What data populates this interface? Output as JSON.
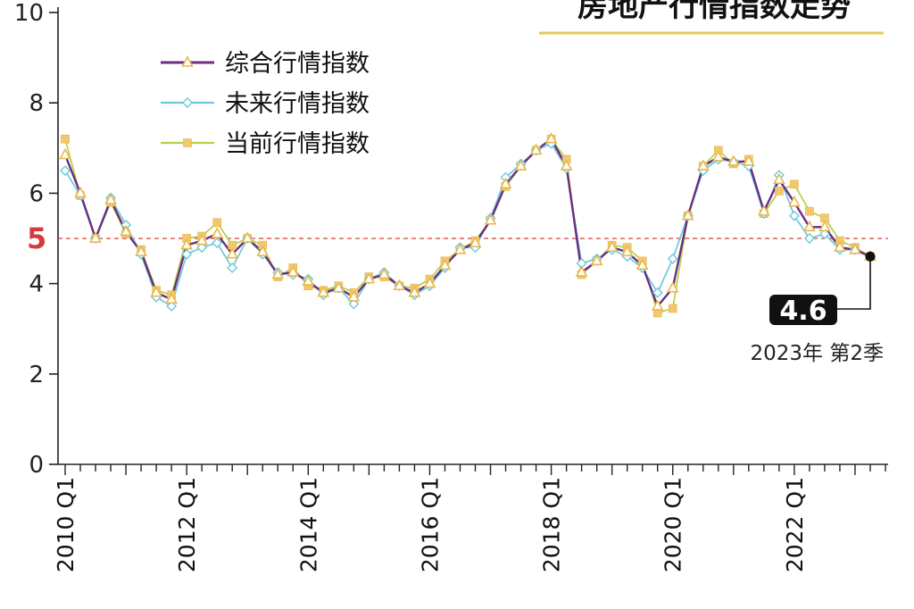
{
  "chart_data": {
    "type": "line",
    "title": "房地产行情指数走势",
    "ylim": [
      0,
      10
    ],
    "yticks": [
      0,
      2,
      4,
      6,
      8,
      10
    ],
    "reference_line": {
      "value": 5,
      "label": "5",
      "color": "#d63a3a"
    },
    "x_tick_labels": [
      "2010 Q1",
      "2012 Q1",
      "2014 Q1",
      "2016 Q1",
      "2018 Q1",
      "2020 Q1",
      "2022 Q1"
    ],
    "x_start_quarter": "2010 Q1",
    "x_end_quarter": "2023 Q2",
    "x": [
      "2010 Q1",
      "2010 Q2",
      "2010 Q3",
      "2010 Q4",
      "2011 Q1",
      "2011 Q2",
      "2011 Q3",
      "2011 Q4",
      "2012 Q1",
      "2012 Q2",
      "2012 Q3",
      "2012 Q4",
      "2013 Q1",
      "2013 Q2",
      "2013 Q3",
      "2013 Q4",
      "2014 Q1",
      "2014 Q2",
      "2014 Q3",
      "2014 Q4",
      "2015 Q1",
      "2015 Q2",
      "2015 Q3",
      "2015 Q4",
      "2016 Q1",
      "2016 Q2",
      "2016 Q3",
      "2016 Q4",
      "2017 Q1",
      "2017 Q2",
      "2017 Q3",
      "2017 Q4",
      "2018 Q1",
      "2018 Q2",
      "2018 Q3",
      "2018 Q4",
      "2019 Q1",
      "2019 Q2",
      "2019 Q3",
      "2019 Q4",
      "2020 Q1",
      "2020 Q2",
      "2020 Q3",
      "2020 Q4",
      "2021 Q1",
      "2021 Q2",
      "2021 Q3",
      "2021 Q4",
      "2022 Q1",
      "2022 Q2",
      "2022 Q3",
      "2022 Q4",
      "2023 Q1",
      "2023 Q2"
    ],
    "series": [
      {
        "name": "综合行情指数",
        "color": "#6a2d82",
        "marker": "triangle-open",
        "marker_color": "#e8b84a",
        "values": [
          6.85,
          6.0,
          5.0,
          5.85,
          5.15,
          4.7,
          3.8,
          3.65,
          4.85,
          4.95,
          5.1,
          4.65,
          5.0,
          4.7,
          4.2,
          4.25,
          4.05,
          3.8,
          3.9,
          3.7,
          4.1,
          4.2,
          3.95,
          3.8,
          4.0,
          4.4,
          4.75,
          4.9,
          5.4,
          6.2,
          6.6,
          6.95,
          7.2,
          6.6,
          4.25,
          4.5,
          4.8,
          4.7,
          4.4,
          3.5,
          3.9,
          5.5,
          6.6,
          6.8,
          6.7,
          6.7,
          5.6,
          6.3,
          5.8,
          5.25,
          5.25,
          4.8,
          4.75,
          4.6
        ]
      },
      {
        "name": "未来行情指数",
        "color": "#6fc8dc",
        "marker": "diamond-open",
        "marker_color": "#6fc8dc",
        "values": [
          6.5,
          5.95,
          5.0,
          5.9,
          5.3,
          4.65,
          3.7,
          3.5,
          4.65,
          4.8,
          4.9,
          4.35,
          5.0,
          4.65,
          4.25,
          4.2,
          4.1,
          3.75,
          3.9,
          3.55,
          4.1,
          4.25,
          3.95,
          3.75,
          3.95,
          4.35,
          4.8,
          4.8,
          5.45,
          6.35,
          6.65,
          6.95,
          7.1,
          6.55,
          4.45,
          4.55,
          4.75,
          4.6,
          4.35,
          3.8,
          4.55,
          5.5,
          6.5,
          6.75,
          6.7,
          6.6,
          5.55,
          6.4,
          5.5,
          5.0,
          5.1,
          4.75,
          4.75,
          4.6
        ]
      },
      {
        "name": "当前行情指数",
        "color": "#b7cf4a",
        "marker": "square",
        "marker_color": "#f2c86a",
        "values": [
          7.2,
          5.95,
          5.0,
          5.8,
          5.1,
          4.75,
          3.85,
          3.75,
          5.0,
          5.05,
          5.35,
          4.85,
          5.0,
          4.85,
          4.15,
          4.35,
          3.95,
          3.85,
          3.95,
          3.8,
          4.15,
          4.15,
          3.95,
          3.9,
          4.1,
          4.5,
          4.75,
          4.95,
          5.4,
          6.15,
          6.6,
          6.95,
          7.2,
          6.75,
          4.2,
          4.5,
          4.85,
          4.8,
          4.5,
          3.35,
          3.45,
          5.5,
          6.6,
          6.95,
          6.65,
          6.75,
          5.55,
          6.05,
          6.2,
          5.6,
          5.45,
          4.95,
          4.8,
          4.6
        ]
      }
    ],
    "annotation": {
      "value_label": "4.6",
      "period_label": "2023年 第2季"
    },
    "grid": false,
    "legend_position": "top-left"
  }
}
